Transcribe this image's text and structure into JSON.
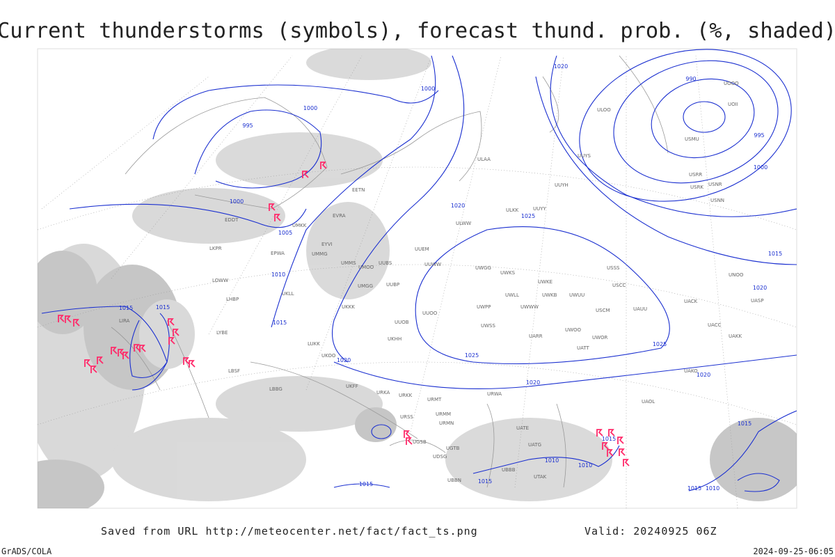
{
  "header": {
    "title": "Current thunderstorms (symbols), forecast thund. prob. (%, shaded)"
  },
  "footer": {
    "saved_from": "Saved from URL http://meteocenter.net/fact/fact_ts.png",
    "valid": "Valid: 20240925 06Z",
    "software": "GrADS/COLA",
    "timestamp": "2024-09-25-06:05"
  },
  "isobar_labels": [
    "1000",
    "1000",
    "995",
    "1000",
    "1005",
    "1010",
    "1015",
    "1015",
    "1015",
    "1020",
    "1025",
    "1025",
    "1025",
    "1020",
    "1020",
    "1020",
    "1020",
    "990",
    "995",
    "1000",
    "1015",
    "1020",
    "1015",
    "1015",
    "1015",
    "1010",
    "1010",
    "1015",
    "1015",
    "1010"
  ],
  "stations": [
    "ULAA",
    "UUYS",
    "UUYH",
    "ULKK",
    "UUYY",
    "ULWW",
    "UUEM",
    "UUWW",
    "UWGG",
    "UWKS",
    "UWKE",
    "UWLL",
    "UWKB",
    "UWUU",
    "UWPP",
    "UWWW",
    "USCM",
    "UAUU",
    "UWSS",
    "UWOO",
    "UARR",
    "UWOR",
    "UATT",
    "URWA",
    "UATE",
    "UATG",
    "UACK",
    "UACC",
    "UAKK",
    "UAKO",
    "UAOL",
    "USSS",
    "USCC",
    "UNOO",
    "UASP",
    "USRR",
    "USRK",
    "USNR",
    "USNN",
    "USMU",
    "UOOO",
    "UOII",
    "ULOO",
    "EETN",
    "EVRA",
    "UMKK",
    "EYVI",
    "UMMG",
    "UMMS",
    "UMOO",
    "UUBS",
    "UUBP",
    "UMGG",
    "UKLL",
    "UKKK",
    "UUOB",
    "UUOO",
    "UKHH",
    "UKOO",
    "LUKK",
    "UKFF",
    "URKA",
    "URKK",
    "URMT",
    "URMM",
    "URMN",
    "URSS",
    "UGSB",
    "UGTB",
    "UDSG",
    "UBBB",
    "UBBN",
    "UTAK",
    "LBBG",
    "LHBP",
    "LOWW",
    "LKPR",
    "EPWA",
    "EDDT",
    "LIRA",
    "LYBE",
    "LBSF"
  ]
}
